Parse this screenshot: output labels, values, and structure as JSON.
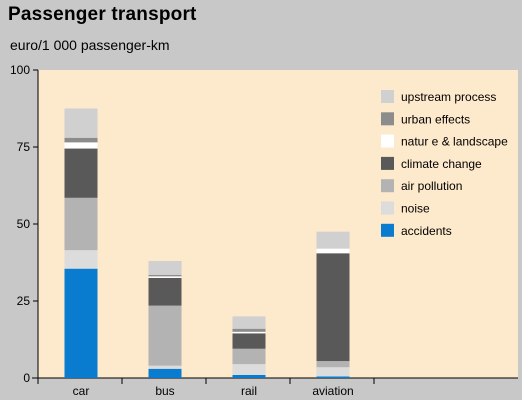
{
  "chart_data": {
    "type": "bar",
    "stacked": true,
    "title": "Passenger transport",
    "subtitle": "euro/1 000 passenger-km",
    "categories": [
      "car",
      "bus",
      "rail",
      "aviation"
    ],
    "ylim": [
      0,
      100
    ],
    "yticks": [
      "0",
      "25",
      "50",
      "75",
      "100"
    ],
    "legend_position": "top-right",
    "plot_background": "#fde9cc",
    "series": [
      {
        "name": "accidents",
        "color": "#0a7ccf",
        "values": [
          35.5,
          3.0,
          1.0,
          0.5
        ]
      },
      {
        "name": "noise",
        "color": "#dcdcdc",
        "values": [
          6.0,
          1.0,
          3.5,
          3.0
        ]
      },
      {
        "name": "air pollution",
        "color": "#b3b3b3",
        "values": [
          17.0,
          19.5,
          5.0,
          2.0
        ]
      },
      {
        "name": "climate change",
        "color": "#595959",
        "values": [
          16.0,
          9.0,
          5.0,
          35.0
        ]
      },
      {
        "name": "natur e & landscape",
        "color": "#ffffff",
        "values": [
          2.0,
          0.5,
          0.5,
          1.5
        ]
      },
      {
        "name": "urban effects",
        "color": "#8c8c8c",
        "values": [
          1.5,
          0.5,
          1.0,
          0.0
        ]
      },
      {
        "name": "upstream process",
        "color": "#d0d0d0",
        "values": [
          9.5,
          4.5,
          4.0,
          5.5
        ]
      }
    ],
    "legend_order": [
      "upstream process",
      "urban effects",
      "natur e & landscape",
      "climate change",
      "air pollution",
      "noise",
      "accidents"
    ]
  }
}
